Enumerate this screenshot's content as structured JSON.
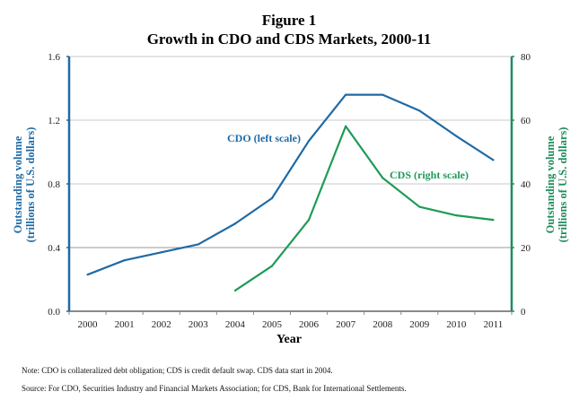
{
  "chart_data": {
    "type": "line",
    "title": "Figure 1",
    "subtitle": "Growth in CDO and CDS Markets, 2000-11",
    "xlabel": "Year",
    "ylabel_left": [
      "Outstanding volume",
      "(trillions of U.S. dollars)"
    ],
    "ylabel_right": [
      "Outstanding volume",
      "(trillions of U.S. dollars)"
    ],
    "categories": [
      "2000",
      "2001",
      "2002",
      "2003",
      "2004",
      "2005",
      "2006",
      "2007",
      "2008",
      "2009",
      "2010",
      "2011"
    ],
    "ylim_left": [
      0,
      1.6
    ],
    "yticks_left": [
      "0.0",
      "0.4",
      "0.8",
      "1.2",
      "1.6"
    ],
    "ylim_right": [
      0,
      80
    ],
    "yticks_right": [
      "0",
      "20",
      "40",
      "60",
      "80"
    ],
    "grid": true,
    "series": [
      {
        "name": "CDO",
        "label": "CDO (left scale)",
        "axis": "left",
        "color": "#1f6aa5",
        "values": [
          0.23,
          0.32,
          0.37,
          0.42,
          0.55,
          0.71,
          1.07,
          1.36,
          1.36,
          1.26,
          1.1,
          0.95
        ]
      },
      {
        "name": "CDS",
        "label": "CDS (right scale)",
        "axis": "right",
        "color": "#1e9b57",
        "values": [
          null,
          null,
          null,
          null,
          6.5,
          14.2,
          28.7,
          58.1,
          41.9,
          32.8,
          30.1,
          28.7
        ]
      }
    ],
    "annotations": [
      "CDO (left scale)",
      "CDS (right scale)"
    ]
  },
  "colors": {
    "left_axis": "#1f6aa5",
    "right_axis": "#1e8c5a",
    "grid": "#c8c8c8",
    "baseline": "#8a8a8a"
  },
  "notes": {
    "note": "Note:  CDO is collateralized debt obligation; CDS is credit default swap.  CDS data start in 2004.",
    "source": "Source:  For CDO, Securities Industry and Financial Markets Association; for CDS, Bank for International Settlements."
  }
}
